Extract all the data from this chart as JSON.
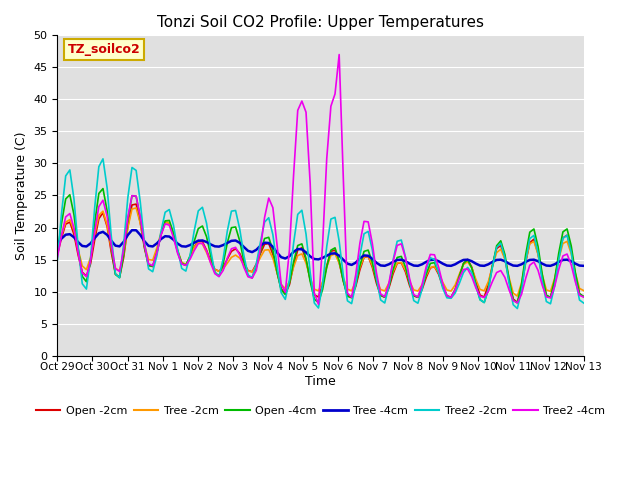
{
  "title": "Tonzi Soil CO2 Profile: Upper Temperatures",
  "ylabel": "Soil Temperature (C)",
  "xlabel": "Time",
  "annotation": "TZ_soilco2",
  "annotation_color": "#cc0000",
  "annotation_bg": "#ffffcc",
  "annotation_border": "#ccaa00",
  "ylim": [
    0,
    50
  ],
  "yticks": [
    0,
    5,
    10,
    15,
    20,
    25,
    30,
    35,
    40,
    45,
    50
  ],
  "bg_color": "#e0e0e0",
  "grid_color": "#ffffff",
  "series": {
    "Open -2cm": {
      "color": "#dd0000",
      "lw": 1.2
    },
    "Tree -2cm": {
      "color": "#ff9900",
      "lw": 1.2
    },
    "Open -4cm": {
      "color": "#00bb00",
      "lw": 1.2
    },
    "Tree -4cm": {
      "color": "#0000cc",
      "lw": 1.8
    },
    "Tree2 -2cm": {
      "color": "#00cccc",
      "lw": 1.2
    },
    "Tree2 -4cm": {
      "color": "#ee00ee",
      "lw": 1.2
    }
  },
  "xtick_labels": [
    "Oct 29",
    "Oct 30",
    "Oct 31",
    "Nov 1",
    "Nov 2",
    "Nov 3",
    "Nov 4",
    "Nov 5",
    "Nov 6",
    "Nov 7",
    "Nov 8",
    "Nov 9",
    "Nov 10",
    "Nov 11",
    "Nov 12",
    "Nov 13"
  ],
  "xtick_positions": [
    0,
    1,
    2,
    3,
    4,
    5,
    6,
    7,
    8,
    9,
    10,
    11,
    12,
    13,
    14,
    15
  ],
  "figsize": [
    6.4,
    4.8
  ],
  "dpi": 100
}
